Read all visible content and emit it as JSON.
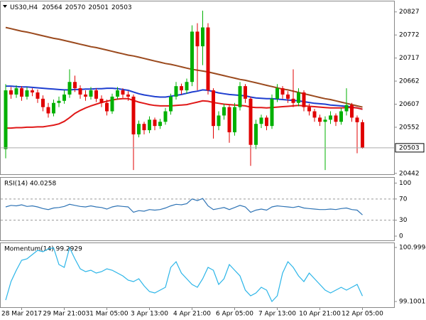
{
  "chart_data": [
    {
      "type": "candlestick",
      "title": "US30,H4",
      "categories": [
        null,
        null,
        null,
        "28 Mar 2017",
        null,
        null,
        null,
        null,
        null,
        null,
        null,
        "29 Mar 21:00",
        null,
        null,
        null,
        null,
        null,
        null,
        null,
        "31 Mar 05:00",
        null,
        null,
        null,
        null,
        null,
        null,
        null,
        "3 Apr 13:00",
        null,
        null,
        null,
        null,
        null,
        null,
        null,
        "4 Apr 21:00",
        null,
        null,
        null,
        null,
        null,
        null,
        null,
        "6 Apr 05:00",
        null,
        null,
        null,
        null,
        null,
        null,
        null,
        "7 Apr 13:00",
        null,
        null,
        null,
        null,
        null,
        null,
        null,
        "10 Apr 21:00",
        null,
        null,
        null,
        null,
        null,
        null,
        null,
        "12 Apr 05:00"
      ],
      "open": [
        20500,
        20640,
        20630,
        20645,
        20625,
        20640,
        20635,
        20620,
        20600,
        20585,
        20610,
        20615,
        20630,
        20660,
        20645,
        20630,
        20625,
        20640,
        20620,
        20610,
        20590,
        20625,
        20640,
        20630,
        20625,
        20535,
        20560,
        20545,
        20570,
        20555,
        20565,
        20590,
        20625,
        20650,
        20640,
        20660,
        20780,
        20745,
        20790,
        20640,
        20555,
        20580,
        20600,
        20540,
        20600,
        20650,
        20620,
        20510,
        20560,
        20575,
        20555,
        20620,
        20645,
        20630,
        20620,
        20610,
        20635,
        20600,
        20590,
        20575,
        20565,
        20570,
        20580,
        20565,
        20590,
        20605,
        20575,
        20564
      ],
      "high": [
        20655,
        20648,
        20652,
        20650,
        20648,
        20645,
        20642,
        20628,
        20610,
        20618,
        20625,
        20640,
        20690,
        20675,
        20652,
        20640,
        20648,
        20645,
        20628,
        20618,
        20632,
        20648,
        20645,
        20638,
        20630,
        20568,
        20565,
        20578,
        20575,
        20572,
        20598,
        20632,
        20660,
        20656,
        20668,
        20795,
        20800,
        20830,
        20800,
        20645,
        20590,
        20608,
        20605,
        20610,
        20660,
        20655,
        20625,
        20570,
        20582,
        20580,
        20630,
        20655,
        20650,
        20638,
        20690,
        20645,
        20640,
        20608,
        20596,
        20582,
        20578,
        20590,
        20585,
        20598,
        20645,
        20610,
        20580,
        20570
      ],
      "low": [
        20478,
        20620,
        20622,
        20615,
        20618,
        20626,
        20610,
        20590,
        20575,
        20578,
        20600,
        20608,
        20622,
        20636,
        20620,
        20615,
        20618,
        20612,
        20600,
        20580,
        20584,
        20618,
        20622,
        20615,
        20450,
        20528,
        20535,
        20538,
        20545,
        20548,
        20558,
        20582,
        20618,
        20630,
        20632,
        20650,
        20640,
        20700,
        20630,
        20525,
        20545,
        20570,
        20515,
        20532,
        20592,
        20610,
        20460,
        20500,
        20550,
        20545,
        20548,
        20612,
        20620,
        20610,
        20600,
        20602,
        20590,
        20580,
        20565,
        20555,
        20450,
        20560,
        20555,
        20558,
        20580,
        20565,
        20490,
        20501
      ],
      "close": [
        20640,
        20630,
        20645,
        20625,
        20640,
        20635,
        20620,
        20600,
        20585,
        20610,
        20615,
        20630,
        20660,
        20645,
        20630,
        20625,
        20640,
        20620,
        20610,
        20590,
        20625,
        20640,
        20630,
        20625,
        20535,
        20560,
        20545,
        20570,
        20555,
        20565,
        20590,
        20625,
        20650,
        20640,
        20660,
        20780,
        20745,
        20790,
        20640,
        20555,
        20580,
        20600,
        20540,
        20600,
        20650,
        20620,
        20510,
        20560,
        20575,
        20555,
        20620,
        20645,
        20630,
        20620,
        20610,
        20635,
        20600,
        20590,
        20575,
        20565,
        20570,
        20580,
        20565,
        20590,
        20605,
        20575,
        20564,
        20503
      ],
      "up_color": "#00b000",
      "down_color": "#e00000",
      "series": [
        {
          "color": "#9b4a1e",
          "values": [
            20790,
            20787,
            20784,
            20781,
            20779,
            20776,
            20773,
            20770,
            20767,
            20764,
            20762,
            20759,
            20756,
            20753,
            20750,
            20747,
            20744,
            20742,
            20739,
            20736,
            20733,
            20730,
            20727,
            20724,
            20722,
            20719,
            20716,
            20713,
            20710,
            20707,
            20704,
            20702,
            20699,
            20696,
            20693,
            20690,
            20688,
            20686,
            20684,
            20681,
            20678,
            20675,
            20672,
            20669,
            20666,
            20664,
            20661,
            20658,
            20655,
            20652,
            20649,
            20646,
            20643,
            20641,
            20638,
            20635,
            20632,
            20629,
            20626,
            20623,
            20620,
            20618,
            20615,
            20612,
            20609,
            20606,
            20603,
            20600
          ]
        },
        {
          "color": "#1f3fd0",
          "values": [
            20650,
            20650,
            20649,
            20648,
            20648,
            20647,
            20646,
            20645,
            20644,
            20643,
            20642,
            20641,
            20641,
            20642,
            20642,
            20643,
            20643,
            20644,
            20644,
            20645,
            20645,
            20644,
            20642,
            20640,
            20636,
            20632,
            20629,
            20627,
            20625,
            20624,
            20624,
            20626,
            20628,
            20630,
            20633,
            20636,
            20638,
            20641,
            20640,
            20637,
            20634,
            20632,
            20630,
            20629,
            20628,
            20627,
            20624,
            20622,
            20621,
            20620,
            20620,
            20619,
            20618,
            20617,
            20616,
            20615,
            20613,
            20611,
            20609,
            20608,
            20607,
            20605,
            20604,
            20603,
            20602,
            20600,
            20598,
            20595
          ]
        },
        {
          "color": "#e01818",
          "values": [
            20550,
            20550,
            20551,
            20551,
            20552,
            20552,
            20553,
            20553,
            20555,
            20557,
            20560,
            20566,
            20575,
            20585,
            20592,
            20598,
            20603,
            20607,
            20611,
            20614,
            20617,
            20619,
            20620,
            20620,
            20616,
            20612,
            20609,
            20606,
            20604,
            20603,
            20603,
            20603,
            20604,
            20605,
            20606,
            20609,
            20612,
            20615,
            20614,
            20611,
            20609,
            20607,
            20606,
            20605,
            20604,
            20603,
            20600,
            20599,
            20599,
            20598,
            20599,
            20600,
            20601,
            20602,
            20603,
            20604,
            20603,
            20602,
            20601,
            20600,
            20599,
            20598,
            20598,
            20598,
            20599,
            20599,
            20598,
            20595
          ]
        }
      ],
      "ylim": [
        20440,
        20852
      ],
      "yticks": [
        20827,
        20772,
        20717,
        20662,
        20607,
        20552,
        20442
      ]
    },
    {
      "type": "line",
      "title": "RSI(14) 40.0258",
      "color": "#2f74b5",
      "values": [
        55,
        58,
        57,
        59,
        56,
        57,
        55,
        52,
        50,
        53,
        54,
        56,
        60,
        58,
        56,
        55,
        57,
        55,
        54,
        51,
        55,
        57,
        56,
        55,
        45,
        48,
        47,
        50,
        49,
        50,
        53,
        57,
        60,
        59,
        61,
        70,
        67,
        71,
        57,
        50,
        52,
        54,
        50,
        54,
        58,
        55,
        45,
        49,
        51,
        49,
        55,
        57,
        56,
        55,
        54,
        56,
        53,
        52,
        51,
        50,
        50,
        51,
        50,
        52,
        53,
        50,
        49,
        40.0258
      ],
      "ylim": [
        -8,
        110
      ],
      "yticks": [
        100,
        70,
        30,
        0
      ]
    },
    {
      "type": "line",
      "title": "Momentum(14) 99.2929",
      "color": "#2bb5e8",
      "values": [
        99.15,
        99.8,
        100.2,
        100.55,
        100.6,
        100.75,
        100.9,
        100.85,
        100.95,
        100.99,
        100.4,
        100.3,
        100.99,
        100.6,
        100.25,
        100.15,
        100.2,
        100.1,
        100.15,
        100.25,
        100.2,
        100.1,
        100.0,
        99.85,
        99.8,
        99.9,
        99.65,
        99.45,
        99.4,
        99.5,
        99.6,
        100.3,
        100.5,
        100.1,
        99.9,
        99.7,
        99.6,
        99.9,
        100.3,
        100.2,
        99.7,
        99.9,
        100.4,
        100.2,
        100.0,
        99.5,
        99.3,
        99.4,
        99.6,
        99.5,
        99.1,
        99.3,
        100.1,
        100.5,
        100.3,
        100.0,
        99.8,
        100.1,
        99.9,
        99.7,
        99.5,
        99.4,
        99.5,
        99.6,
        99.5,
        99.6,
        99.7,
        99.2929
      ],
      "ylim": [
        98.9,
        101.15
      ],
      "yticks": [
        100.9994,
        99.1001
      ]
    }
  ]
}
